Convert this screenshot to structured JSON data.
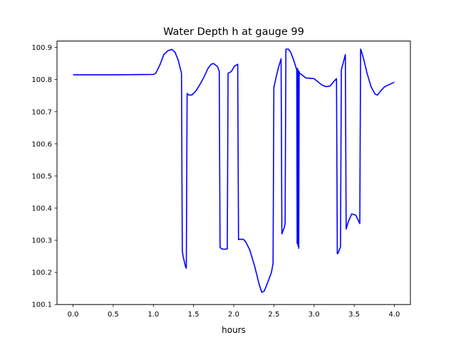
{
  "chart_data": {
    "type": "line",
    "title": "Water Depth h at gauge 99",
    "xlabel": "hours",
    "ylabel": "",
    "xlim": [
      -0.2,
      4.2
    ],
    "ylim": [
      100.1,
      100.92
    ],
    "xticks": [
      0.0,
      0.5,
      1.0,
      1.5,
      2.0,
      2.5,
      3.0,
      3.5,
      4.0
    ],
    "xtick_labels": [
      "0.0",
      "0.5",
      "1.0",
      "1.5",
      "2.0",
      "2.5",
      "3.0",
      "3.5",
      "4.0"
    ],
    "yticks": [
      100.1,
      100.2,
      100.3,
      100.4,
      100.5,
      100.6,
      100.7,
      100.8,
      100.9
    ],
    "ytick_labels": [
      "100.1",
      "100.2",
      "100.3",
      "100.4",
      "100.5",
      "100.6",
      "100.7",
      "100.8",
      "100.9"
    ],
    "grid": false,
    "series_color": "#0000ff",
    "series": [
      {
        "x": [
          0.0,
          0.5,
          1.0,
          1.03,
          1.08,
          1.13,
          1.18,
          1.23,
          1.27,
          1.31,
          1.35,
          1.36,
          1.37,
          1.4,
          1.41,
          1.42,
          1.44,
          1.48,
          1.53,
          1.58,
          1.63,
          1.68,
          1.72,
          1.75,
          1.8,
          1.82,
          1.83,
          1.85,
          1.88,
          1.92,
          1.93,
          1.97,
          2.01,
          2.05,
          2.06,
          2.07,
          2.12,
          2.15,
          2.2,
          2.26,
          2.32,
          2.35,
          2.38,
          2.41,
          2.44,
          2.47,
          2.49,
          2.5,
          2.53,
          2.56,
          2.59,
          2.6,
          2.63,
          2.64,
          2.65,
          2.68,
          2.71,
          2.75,
          2.785,
          2.79,
          2.795,
          2.8,
          2.805,
          2.81,
          2.815,
          2.82,
          2.9,
          3.0,
          3.05,
          3.1,
          3.15,
          3.2,
          3.25,
          3.28,
          3.29,
          3.3,
          3.33,
          3.34,
          3.39,
          3.4,
          3.43,
          3.47,
          3.52,
          3.57,
          3.58,
          3.59,
          3.62,
          3.66,
          3.71,
          3.76,
          3.79,
          3.83,
          3.88,
          3.94,
          4.0
        ],
        "y": [
          100.815,
          100.815,
          100.816,
          100.82,
          100.845,
          100.878,
          100.89,
          100.894,
          100.885,
          100.86,
          100.82,
          100.268,
          100.25,
          100.218,
          100.213,
          100.757,
          100.752,
          100.752,
          100.765,
          100.785,
          100.808,
          100.835,
          100.848,
          100.85,
          100.84,
          100.825,
          100.278,
          100.273,
          100.272,
          100.273,
          100.82,
          100.825,
          100.842,
          100.848,
          100.302,
          100.303,
          100.303,
          100.295,
          100.27,
          100.22,
          100.16,
          100.138,
          100.142,
          100.16,
          100.18,
          100.2,
          100.228,
          100.775,
          100.81,
          100.84,
          100.865,
          100.32,
          100.34,
          100.352,
          100.895,
          100.895,
          100.885,
          100.858,
          100.83,
          100.29,
          100.835,
          100.282,
          100.828,
          100.275,
          100.825,
          100.82,
          100.805,
          100.803,
          100.793,
          100.783,
          100.778,
          100.78,
          100.795,
          100.803,
          100.258,
          100.26,
          100.28,
          100.83,
          100.878,
          100.335,
          100.36,
          100.382,
          100.378,
          100.352,
          100.895,
          100.888,
          100.862,
          100.82,
          100.778,
          100.755,
          100.752,
          100.765,
          100.778,
          100.785,
          100.792
        ]
      }
    ]
  }
}
